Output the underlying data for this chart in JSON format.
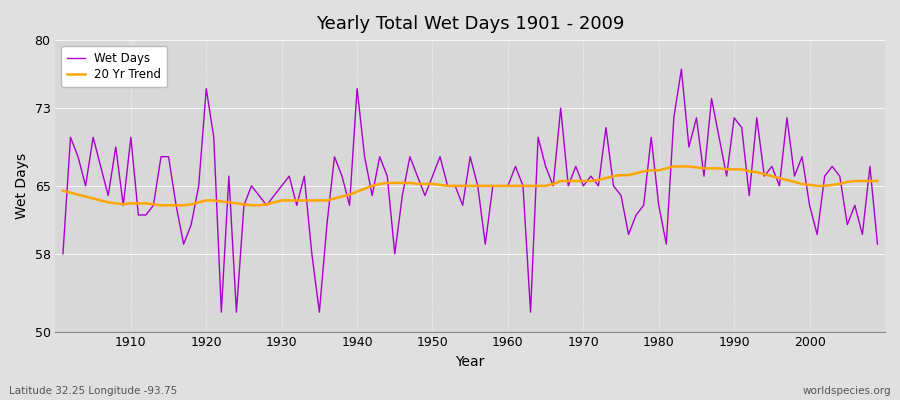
{
  "title": "Yearly Total Wet Days 1901 - 2009",
  "xlabel": "Year",
  "ylabel": "Wet Days",
  "footnote_left": "Latitude 32.25 Longitude -93.75",
  "footnote_right": "worldspecies.org",
  "ylim": [
    50,
    80
  ],
  "yticks": [
    50,
    58,
    65,
    73,
    80
  ],
  "xticks": [
    1910,
    1920,
    1930,
    1940,
    1950,
    1960,
    1970,
    1980,
    1990,
    2000
  ],
  "line_color": "#AA00CC",
  "trend_color": "#FFA500",
  "fig_bg_color": "#E0E0E0",
  "plot_bg_color": "#D8D8D8",
  "years": [
    1901,
    1902,
    1903,
    1904,
    1905,
    1906,
    1907,
    1908,
    1909,
    1910,
    1911,
    1912,
    1913,
    1914,
    1915,
    1916,
    1917,
    1918,
    1919,
    1920,
    1921,
    1922,
    1923,
    1924,
    1925,
    1926,
    1927,
    1928,
    1929,
    1930,
    1931,
    1932,
    1933,
    1934,
    1935,
    1936,
    1937,
    1938,
    1939,
    1940,
    1941,
    1942,
    1943,
    1944,
    1945,
    1946,
    1947,
    1948,
    1949,
    1950,
    1951,
    1952,
    1953,
    1954,
    1955,
    1956,
    1957,
    1958,
    1959,
    1960,
    1961,
    1962,
    1963,
    1964,
    1965,
    1966,
    1967,
    1968,
    1969,
    1970,
    1971,
    1972,
    1973,
    1974,
    1975,
    1976,
    1977,
    1978,
    1979,
    1980,
    1981,
    1982,
    1983,
    1984,
    1985,
    1986,
    1987,
    1988,
    1989,
    1990,
    1991,
    1992,
    1993,
    1994,
    1995,
    1996,
    1997,
    1998,
    1999,
    2000,
    2001,
    2002,
    2003,
    2004,
    2005,
    2006,
    2007,
    2008,
    2009
  ],
  "wet_days": [
    58,
    70,
    68,
    65,
    70,
    67,
    64,
    69,
    63,
    70,
    62,
    62,
    63,
    68,
    68,
    63,
    59,
    61,
    65,
    75,
    70,
    52,
    66,
    52,
    63,
    65,
    64,
    63,
    64,
    65,
    66,
    63,
    66,
    58,
    52,
    61,
    68,
    66,
    63,
    75,
    68,
    64,
    68,
    66,
    58,
    64,
    68,
    66,
    64,
    66,
    68,
    65,
    65,
    63,
    68,
    65,
    59,
    65,
    65,
    65,
    67,
    65,
    52,
    70,
    67,
    65,
    73,
    65,
    67,
    65,
    66,
    65,
    71,
    65,
    64,
    60,
    62,
    63,
    70,
    63,
    59,
    72,
    77,
    69,
    72,
    66,
    74,
    70,
    66,
    72,
    71,
    64,
    72,
    66,
    67,
    65,
    72,
    66,
    68,
    63,
    60,
    66,
    67,
    66,
    61,
    63,
    60,
    67,
    59
  ],
  "trend": [
    64.5,
    64.3,
    64.1,
    63.9,
    63.7,
    63.5,
    63.3,
    63.2,
    63.1,
    63.2,
    63.2,
    63.2,
    63.1,
    63.0,
    63.0,
    63.0,
    63.0,
    63.1,
    63.3,
    63.5,
    63.5,
    63.4,
    63.3,
    63.2,
    63.1,
    63.0,
    63.0,
    63.1,
    63.3,
    63.5,
    63.5,
    63.5,
    63.5,
    63.5,
    63.5,
    63.5,
    63.7,
    63.9,
    64.1,
    64.4,
    64.7,
    65.0,
    65.2,
    65.3,
    65.3,
    65.3,
    65.3,
    65.2,
    65.2,
    65.2,
    65.1,
    65.0,
    65.0,
    65.0,
    65.0,
    65.0,
    65.0,
    65.0,
    65.0,
    65.0,
    65.0,
    65.0,
    65.0,
    65.0,
    65.0,
    65.2,
    65.5,
    65.5,
    65.5,
    65.5,
    65.5,
    65.6,
    65.8,
    66.0,
    66.1,
    66.1,
    66.3,
    66.5,
    66.6,
    66.6,
    66.8,
    67.0,
    67.0,
    67.0,
    66.9,
    66.8,
    66.8,
    66.8,
    66.7,
    66.7,
    66.7,
    66.5,
    66.4,
    66.2,
    66.0,
    65.8,
    65.6,
    65.4,
    65.2,
    65.1,
    65.0,
    65.0,
    65.1,
    65.2,
    65.4,
    65.5,
    65.5,
    65.5,
    65.5
  ]
}
